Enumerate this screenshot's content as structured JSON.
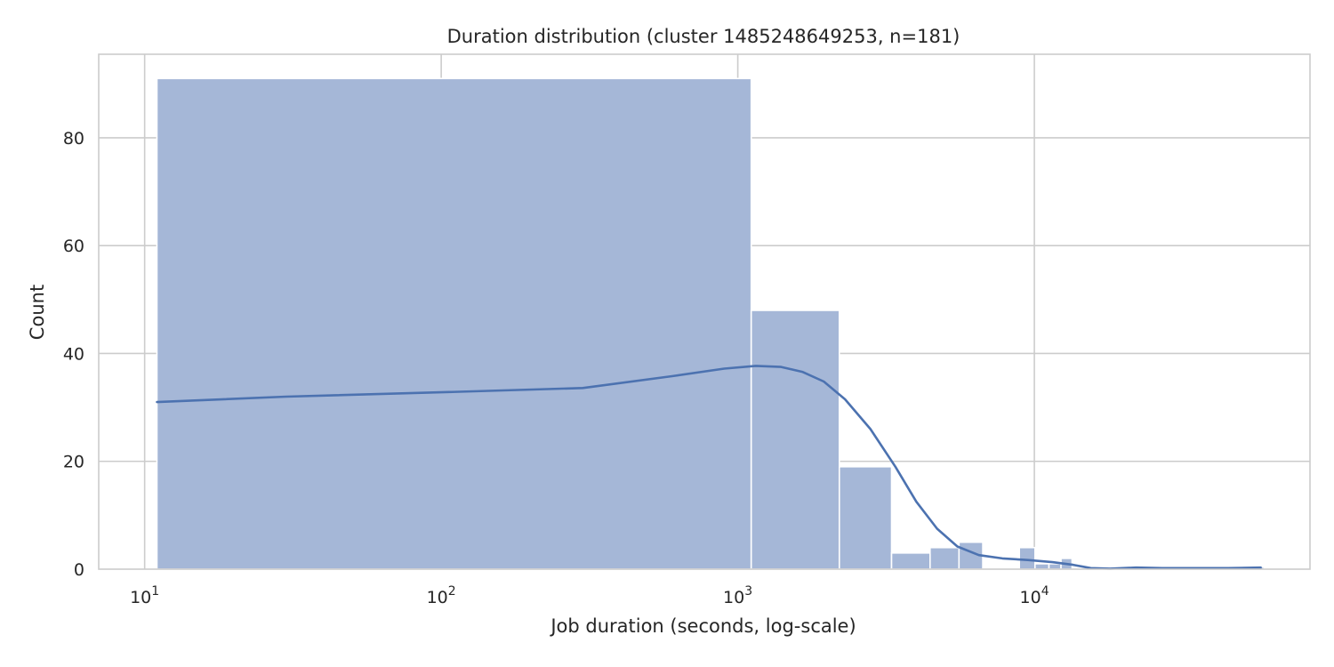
{
  "chart_data": {
    "type": "bar",
    "title": "Duration distribution (cluster 1485248649253, n=181)",
    "xlabel": "Job duration (seconds, log-scale)",
    "ylabel": "Count",
    "x_scale": "log",
    "xlim": [
      7,
      85000
    ],
    "ylim": [
      0,
      95.5
    ],
    "grid": true,
    "x_ticks": [
      {
        "value": 10,
        "base": "10",
        "exp": "1"
      },
      {
        "value": 100,
        "base": "10",
        "exp": "2"
      },
      {
        "value": 1000,
        "base": "10",
        "exp": "3"
      },
      {
        "value": 10000,
        "base": "10",
        "exp": "4"
      }
    ],
    "y_ticks": [
      0,
      20,
      40,
      60,
      80
    ],
    "bar_color": "#a5b7d7",
    "line_color": "#4c72b0",
    "bins": [
      {
        "x0": 11,
        "x1": 1110,
        "count": 91
      },
      {
        "x0": 1110,
        "x1": 2200,
        "count": 48
      },
      {
        "x0": 2200,
        "x1": 3300,
        "count": 19
      },
      {
        "x0": 3300,
        "x1": 4450,
        "count": 3
      },
      {
        "x0": 4450,
        "x1": 5570,
        "count": 4
      },
      {
        "x0": 5570,
        "x1": 6700,
        "count": 5
      },
      {
        "x0": 6700,
        "x1": 8900,
        "count": 0
      },
      {
        "x0": 8900,
        "x1": 10050,
        "count": 4
      },
      {
        "x0": 10050,
        "x1": 11200,
        "count": 1
      },
      {
        "x0": 11200,
        "x1": 12300,
        "count": 1
      },
      {
        "x0": 12300,
        "x1": 13400,
        "count": 2
      },
      {
        "x0": 24000,
        "x1": 25200,
        "count": 0.5
      },
      {
        "x0": 58000,
        "x1": 59500,
        "count": 0.4
      }
    ],
    "kde": {
      "name": "density",
      "x": [
        11,
        30,
        100,
        300,
        600,
        900,
        1150,
        1400,
        1650,
        1950,
        2300,
        2800,
        3400,
        4000,
        4700,
        5500,
        6500,
        7800,
        9500,
        11500,
        13500,
        15500,
        18000,
        22000,
        27000,
        35000,
        45000,
        58000
      ],
      "y": [
        31,
        32,
        32.8,
        33.6,
        35.8,
        37.2,
        37.7,
        37.5,
        36.6,
        34.8,
        31.5,
        26,
        19,
        12.5,
        7.5,
        4.2,
        2.6,
        2,
        1.7,
        1.3,
        0.8,
        0.2,
        0.1,
        0.3,
        0.2,
        0.2,
        0.2,
        0.3
      ]
    }
  }
}
